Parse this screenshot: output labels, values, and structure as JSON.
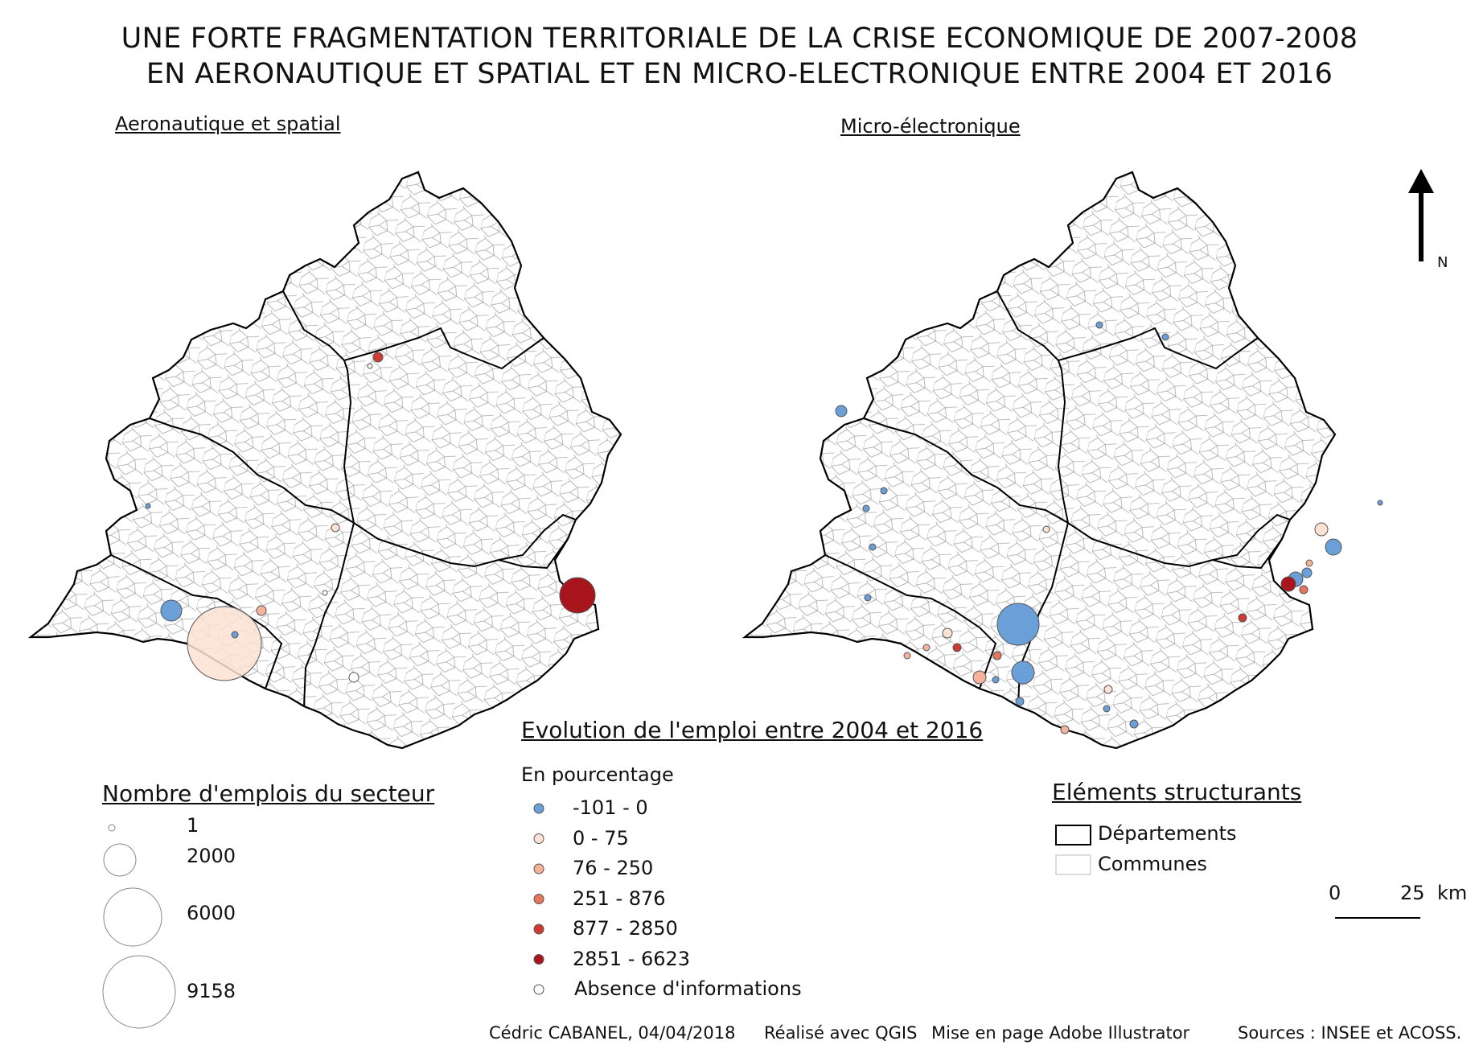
{
  "title": {
    "line1": "UNE FORTE FRAGMENTATION TERRITORIALE DE LA CRISE ECONOMIQUE DE 2007-2008",
    "line2": "EN AERONAUTIQUE ET SPATIAL ET EN MICRO-ELECTRONIQUE ENTRE 2004 ET 2016"
  },
  "maps": {
    "left_title": "Aeronautique et spatial",
    "right_title": "Micro-électronique"
  },
  "north_arrow": {
    "label": "N"
  },
  "colors": {
    "c1": "#6a9fd8",
    "c2": "#fbe2d4",
    "c3": "#f6b39b",
    "c4": "#e8765c",
    "c5": "#cf3b32",
    "c6": "#a8151d",
    "none": "#ffffff",
    "commune_border": "#999999",
    "department_border": "#000000"
  },
  "legend_size": {
    "title": "Nombre d'emplois du secteur",
    "items": [
      {
        "value": 1,
        "label": "1"
      },
      {
        "value": 2000,
        "label": "2000"
      },
      {
        "value": 6000,
        "label": "6000"
      },
      {
        "value": 9158,
        "label": "9158"
      }
    ]
  },
  "legend_evolution": {
    "title": "Evolution de l'emploi entre 2004 et 2016",
    "subtitle": "En pourcentage",
    "items": [
      {
        "label": "-101 - 0",
        "color": "#6a9fd8"
      },
      {
        "label": "0 - 75",
        "color": "#fbe2d4"
      },
      {
        "label": "76 - 250",
        "color": "#f6b39b"
      },
      {
        "label": "251 - 876",
        "color": "#e8765c"
      },
      {
        "label": "877 - 2850",
        "color": "#cf3b32"
      },
      {
        "label": "2851 - 6623",
        "color": "#a8151d"
      },
      {
        "label": "Absence d'informations",
        "color": "#ffffff"
      }
    ]
  },
  "legend_structure": {
    "title": "Eléments structurants",
    "items": [
      {
        "label": "Départements",
        "kind": "department"
      },
      {
        "label": "Communes",
        "kind": "commune"
      }
    ]
  },
  "scale_bar": {
    "start": "0",
    "end": "25",
    "unit": "km"
  },
  "footer": {
    "author": "Cédric CABANEL, 04/04/2018",
    "software": "Réalisé avec QGIS",
    "layout": "Mise en page Adobe Illustrator",
    "sources": "Sources : INSEE et ACOSS."
  }
}
